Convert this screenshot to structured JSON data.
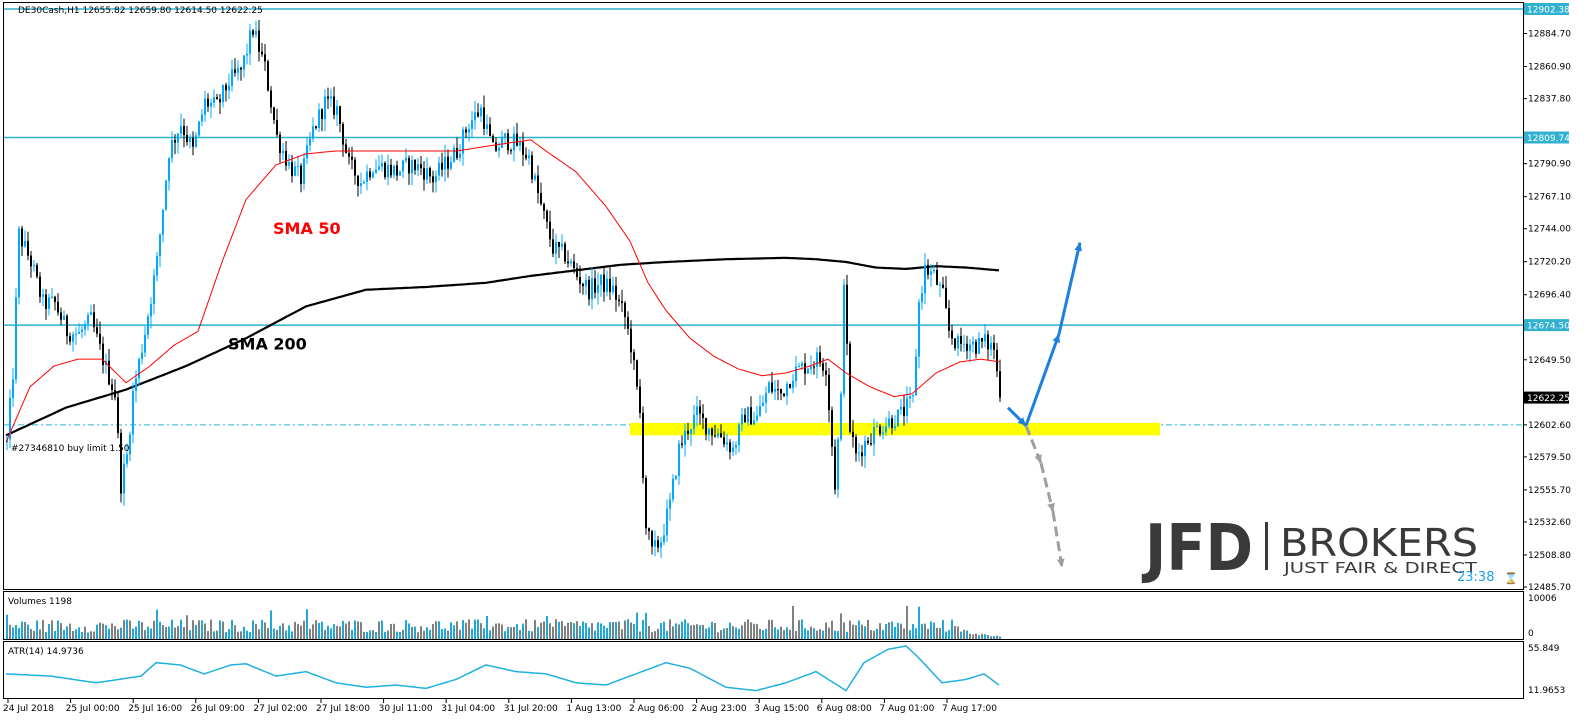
{
  "header_text": "DE30Cash,H1  12655.82 12659.80 12614.50 12622.25",
  "order_line_text": "#27346810 buy limit 1.50",
  "watermark": {
    "logo_left": "JFD",
    "logo_right": "BROKERS",
    "tagline": "JUST FAIR & DIRECT"
  },
  "countdown_text": "23:38",
  "chart_data": {
    "type": "candlestick",
    "symbol": "DE30Cash",
    "timeframe": "H1",
    "ylim": [
      12485.7,
      12902.38
    ],
    "price_axis_ticks": [
      12884.7,
      12860.9,
      12837.8,
      12790.9,
      12767.1,
      12744.0,
      12720.2,
      12696.4,
      12649.5,
      12602.6,
      12579.5,
      12555.7,
      12532.6,
      12508.8,
      12485.7
    ],
    "price_tag_labels": [
      {
        "text": "12902.38",
        "value": 12902.38
      },
      {
        "text": "12809.74",
        "value": 12809.74
      },
      {
        "text": "12674.50",
        "value": 12674.5
      },
      {
        "text": "12622.25",
        "value": 12622.25
      }
    ],
    "time_labels": [
      "24 Jul 2018",
      "25 Jul 00:00",
      "25 Jul 16:00",
      "26 Jul 09:00",
      "27 Jul 02:00",
      "27 Jul 18:00",
      "30 Jul 11:00",
      "31 Jul 04:00",
      "31 Jul 20:00",
      "1 Aug 13:00",
      "2 Aug 06:00",
      "2 Aug 23:00",
      "3 Aug 15:00",
      "6 Aug 08:00",
      "7 Aug 01:00",
      "7 Aug 17:00"
    ],
    "horizontal_levels": [
      12902.38,
      12809.74,
      12674.5
    ],
    "order_level": 12602.6,
    "support_zone": [
      12595.0,
      12604.0
    ],
    "anchor_closes": [
      [
        0,
        12590
      ],
      [
        2,
        12640
      ],
      [
        4,
        12740
      ],
      [
        8,
        12720
      ],
      [
        12,
        12690
      ],
      [
        16,
        12690
      ],
      [
        20,
        12670
      ],
      [
        24,
        12668
      ],
      [
        28,
        12678
      ],
      [
        32,
        12650
      ],
      [
        36,
        12625
      ],
      [
        38,
        12560
      ],
      [
        40,
        12580
      ],
      [
        42,
        12625
      ],
      [
        46,
        12670
      ],
      [
        50,
        12720
      ],
      [
        54,
        12800
      ],
      [
        58,
        12820
      ],
      [
        62,
        12800
      ],
      [
        66,
        12835
      ],
      [
        70,
        12832
      ],
      [
        74,
        12850
      ],
      [
        78,
        12858
      ],
      [
        82,
        12888
      ],
      [
        86,
        12860
      ],
      [
        90,
        12810
      ],
      [
        94,
        12790
      ],
      [
        98,
        12780
      ],
      [
        102,
        12815
      ],
      [
        106,
        12835
      ],
      [
        110,
        12830
      ],
      [
        114,
        12790
      ],
      [
        118,
        12778
      ],
      [
        122,
        12790
      ],
      [
        126,
        12788
      ],
      [
        130,
        12785
      ],
      [
        134,
        12790
      ],
      [
        138,
        12788
      ],
      [
        142,
        12780
      ],
      [
        146,
        12790
      ],
      [
        150,
        12800
      ],
      [
        154,
        12820
      ],
      [
        158,
        12830
      ],
      [
        162,
        12800
      ],
      [
        166,
        12808
      ],
      [
        170,
        12805
      ],
      [
        174,
        12795
      ],
      [
        178,
        12760
      ],
      [
        182,
        12730
      ],
      [
        186,
        12725
      ],
      [
        190,
        12710
      ],
      [
        194,
        12700
      ],
      [
        198,
        12705
      ],
      [
        202,
        12700
      ],
      [
        206,
        12680
      ],
      [
        208,
        12660
      ],
      [
        211,
        12610
      ],
      [
        213,
        12530
      ],
      [
        215,
        12510
      ],
      [
        218,
        12520
      ],
      [
        221,
        12545
      ],
      [
        224,
        12585
      ],
      [
        227,
        12600
      ],
      [
        230,
        12610
      ],
      [
        234,
        12600
      ],
      [
        238,
        12595
      ],
      [
        242,
        12585
      ],
      [
        246,
        12610
      ],
      [
        250,
        12608
      ],
      [
        254,
        12630
      ],
      [
        258,
        12625
      ],
      [
        262,
        12640
      ],
      [
        266,
        12645
      ],
      [
        270,
        12650
      ],
      [
        273,
        12645
      ],
      [
        276,
        12560
      ],
      [
        278,
        12620
      ],
      [
        279,
        12710
      ],
      [
        281,
        12600
      ],
      [
        283,
        12580
      ],
      [
        286,
        12590
      ],
      [
        290,
        12600
      ],
      [
        294,
        12605
      ],
      [
        298,
        12610
      ],
      [
        302,
        12620
      ],
      [
        304,
        12690
      ],
      [
        306,
        12715
      ],
      [
        309,
        12710
      ],
      [
        312,
        12695
      ],
      [
        314,
        12670
      ],
      [
        317,
        12660
      ],
      [
        320,
        12662
      ],
      [
        323,
        12660
      ],
      [
        326,
        12662
      ],
      [
        329,
        12658
      ],
      [
        331,
        12622
      ]
    ],
    "sma_50_points": [
      [
        0,
        12590
      ],
      [
        8,
        12630
      ],
      [
        16,
        12645
      ],
      [
        24,
        12650
      ],
      [
        32,
        12650
      ],
      [
        40,
        12633
      ],
      [
        48,
        12645
      ],
      [
        56,
        12660
      ],
      [
        64,
        12670
      ],
      [
        72,
        12720
      ],
      [
        80,
        12765
      ],
      [
        90,
        12790
      ],
      [
        100,
        12798
      ],
      [
        110,
        12800
      ],
      [
        120,
        12800
      ],
      [
        135,
        12800
      ],
      [
        150,
        12800
      ],
      [
        165,
        12805
      ],
      [
        175,
        12808
      ],
      [
        180,
        12800
      ],
      [
        190,
        12785
      ],
      [
        200,
        12760
      ],
      [
        208,
        12735
      ],
      [
        214,
        12705
      ],
      [
        220,
        12685
      ],
      [
        228,
        12665
      ],
      [
        236,
        12652
      ],
      [
        244,
        12643
      ],
      [
        252,
        12638
      ],
      [
        260,
        12640
      ],
      [
        268,
        12645
      ],
      [
        274,
        12650
      ],
      [
        280,
        12640
      ],
      [
        288,
        12630
      ],
      [
        296,
        12623
      ],
      [
        302,
        12625
      ],
      [
        310,
        12640
      ],
      [
        318,
        12648
      ],
      [
        325,
        12650
      ],
      [
        331,
        12648
      ]
    ],
    "sma_200_points": [
      [
        0,
        12595
      ],
      [
        20,
        12615
      ],
      [
        40,
        12628
      ],
      [
        60,
        12645
      ],
      [
        80,
        12665
      ],
      [
        100,
        12688
      ],
      [
        120,
        12700
      ],
      [
        140,
        12702
      ],
      [
        160,
        12705
      ],
      [
        175,
        12710
      ],
      [
        190,
        12714
      ],
      [
        205,
        12718
      ],
      [
        220,
        12720
      ],
      [
        240,
        12722
      ],
      [
        260,
        12723
      ],
      [
        270,
        12722
      ],
      [
        280,
        12720
      ],
      [
        290,
        12716
      ],
      [
        300,
        12715
      ],
      [
        310,
        12717
      ],
      [
        320,
        12716
      ],
      [
        331,
        12714
      ]
    ],
    "series_labels": [
      {
        "text": "SMA 50",
        "color": "#ff0000",
        "bar": 89,
        "value": 12740
      },
      {
        "text": "SMA 200",
        "color": "#000000",
        "bar": 74,
        "value": 12657
      }
    ],
    "projection_arrows": {
      "bullish": {
        "color": "#1e7fe0",
        "points": [
          [
            334,
            12615
          ],
          [
            340,
            12602
          ],
          [
            351,
            12668
          ],
          [
            358,
            12734
          ]
        ]
      },
      "bearish": {
        "color": "#9e9e9e",
        "points": [
          [
            340,
            12602
          ],
          [
            345,
            12575
          ],
          [
            349,
            12540
          ],
          [
            352,
            12500
          ]
        ]
      }
    },
    "colors": {
      "bull_candle": "#00a8ff",
      "bear_candle": "#000000",
      "level_line": "#2fb1cf",
      "sma_50": "#ff0000",
      "sma_200": "#000000",
      "support_zone": "#ffff00",
      "order_line": "#2fb1cf",
      "volume_up": "#1fa8d8",
      "volume_down": "#808080",
      "atr_line": "#20b0e0"
    },
    "volumes_panel": {
      "label": "Volumes 1198",
      "ylim": [
        0,
        10006
      ],
      "tick_labels": [
        "10006",
        "0"
      ]
    },
    "atr_panel": {
      "label": "ATR(14) 14.9736",
      "ylim": [
        11.9653,
        55.849
      ],
      "tick_labels": [
        "55.849",
        "11.9653"
      ],
      "anchor_points": [
        [
          0,
          30
        ],
        [
          15,
          28
        ],
        [
          30,
          22
        ],
        [
          45,
          28
        ],
        [
          50,
          40
        ],
        [
          58,
          38
        ],
        [
          66,
          30
        ],
        [
          75,
          38
        ],
        [
          80,
          39
        ],
        [
          90,
          28
        ],
        [
          100,
          32
        ],
        [
          110,
          22
        ],
        [
          120,
          18
        ],
        [
          130,
          20
        ],
        [
          140,
          17
        ],
        [
          150,
          25
        ],
        [
          160,
          38
        ],
        [
          170,
          32
        ],
        [
          180,
          30
        ],
        [
          190,
          22
        ],
        [
          200,
          20
        ],
        [
          210,
          30
        ],
        [
          220,
          40
        ],
        [
          228,
          35
        ],
        [
          240,
          18
        ],
        [
          250,
          15
        ],
        [
          260,
          22
        ],
        [
          270,
          32
        ],
        [
          280,
          15
        ],
        [
          286,
          40
        ],
        [
          294,
          52
        ],
        [
          300,
          55
        ],
        [
          304,
          45
        ],
        [
          312,
          22
        ],
        [
          320,
          25
        ],
        [
          326,
          30
        ],
        [
          332,
          18
        ],
        [
          334,
          15
        ]
      ]
    }
  }
}
